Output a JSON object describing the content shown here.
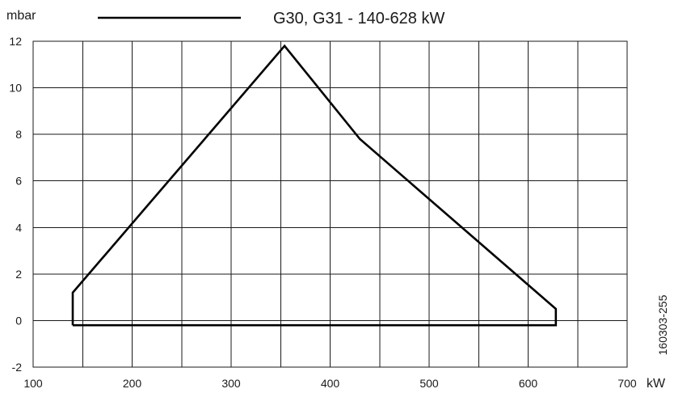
{
  "chart_data": {
    "type": "line",
    "legend_label": "G30, G31 - 140-628 kW",
    "ylabel": "mbar",
    "xlabel": "kW",
    "figure_code": "160303-255",
    "xlim": [
      100,
      700
    ],
    "ylim": [
      -2,
      12
    ],
    "x_ticks": [
      100,
      200,
      300,
      400,
      500,
      600,
      700
    ],
    "y_ticks": [
      -2,
      0,
      2,
      4,
      6,
      8,
      10,
      12
    ],
    "x_grid_step": 50,
    "y_grid_step": 2,
    "grid": true,
    "legend_position": "top-center",
    "series": [
      {
        "name": "G30, G31 - 140-628 kW",
        "color": "#000000",
        "points": [
          [
            140,
            -0.2
          ],
          [
            140,
            1.2
          ],
          [
            354,
            11.8
          ],
          [
            430,
            7.8
          ],
          [
            628,
            0.5
          ],
          [
            628,
            -0.2
          ],
          [
            140,
            -0.2
          ]
        ]
      }
    ]
  }
}
